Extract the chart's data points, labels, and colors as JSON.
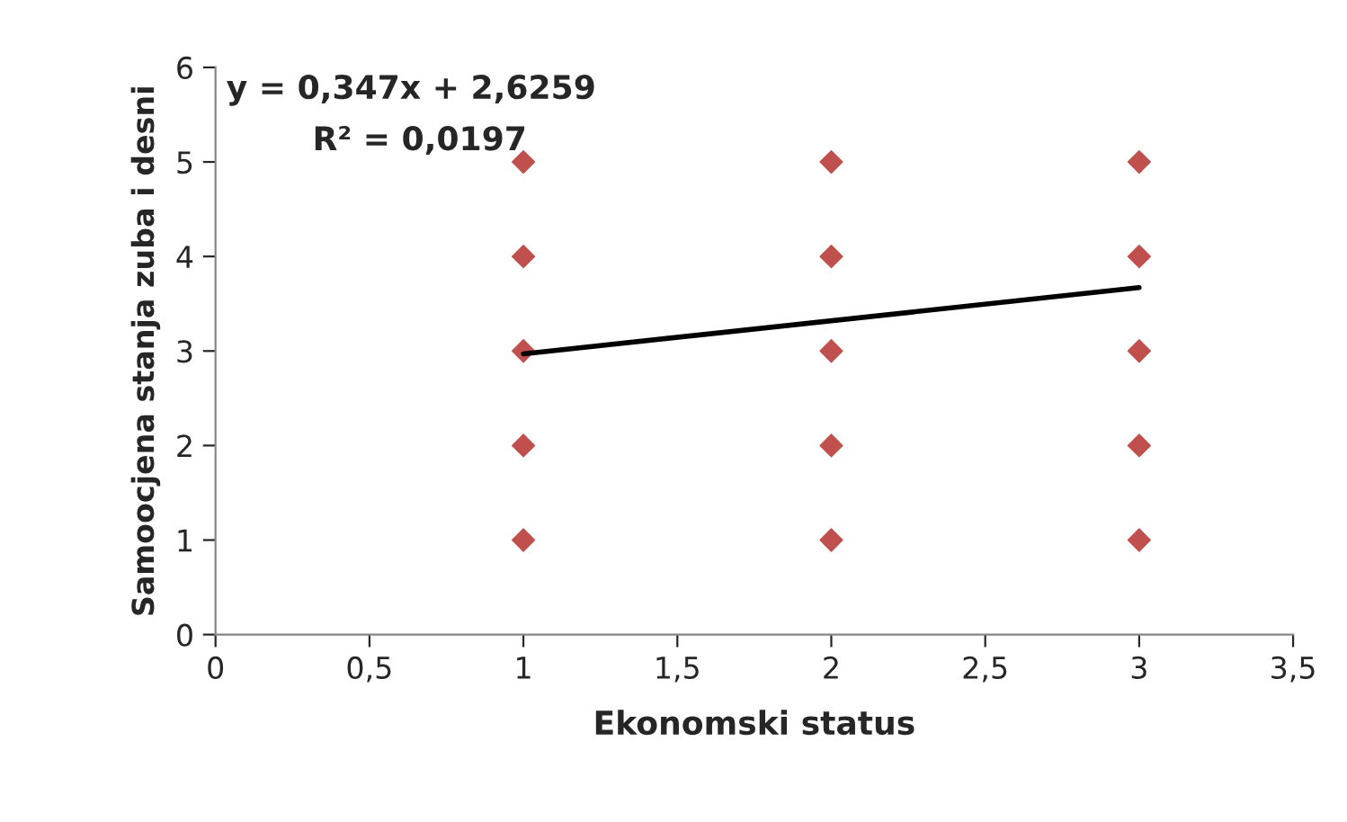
{
  "chart_data": {
    "type": "scatter",
    "xlabel": "Ekonomski status",
    "ylabel": "Samoocjena stanja zuba i desni",
    "annotations": [
      "y = 0,347x + 2,6259",
      "R² = 0,0197"
    ],
    "series": [
      {
        "color": "#c0504d",
        "marker": "diamond",
        "x": [
          1,
          1,
          1,
          1,
          1,
          2,
          2,
          2,
          2,
          2,
          3,
          3,
          3,
          3,
          3
        ],
        "values": [
          1,
          2,
          3,
          4,
          5,
          1,
          2,
          3,
          4,
          5,
          1,
          2,
          3,
          4,
          5
        ]
      },
      {
        "type": "line",
        "color": "#000000",
        "line_style": "solid",
        "x": [
          1,
          3
        ],
        "values": [
          2.97,
          3.67
        ]
      }
    ],
    "xlim": [
      0,
      3.5
    ],
    "ylim": [
      0,
      6
    ],
    "xticks": [
      0,
      {
        "value": 0.5,
        "label": "0,5"
      },
      1,
      {
        "value": 1.5,
        "label": "1,5"
      },
      2,
      {
        "value": 2.5,
        "label": "2,5"
      },
      3,
      {
        "value": 3.5,
        "label": "3,5"
      }
    ],
    "yticks": [
      0,
      1,
      2,
      3,
      4,
      5,
      6
    ],
    "grid": false,
    "legend": false
  }
}
